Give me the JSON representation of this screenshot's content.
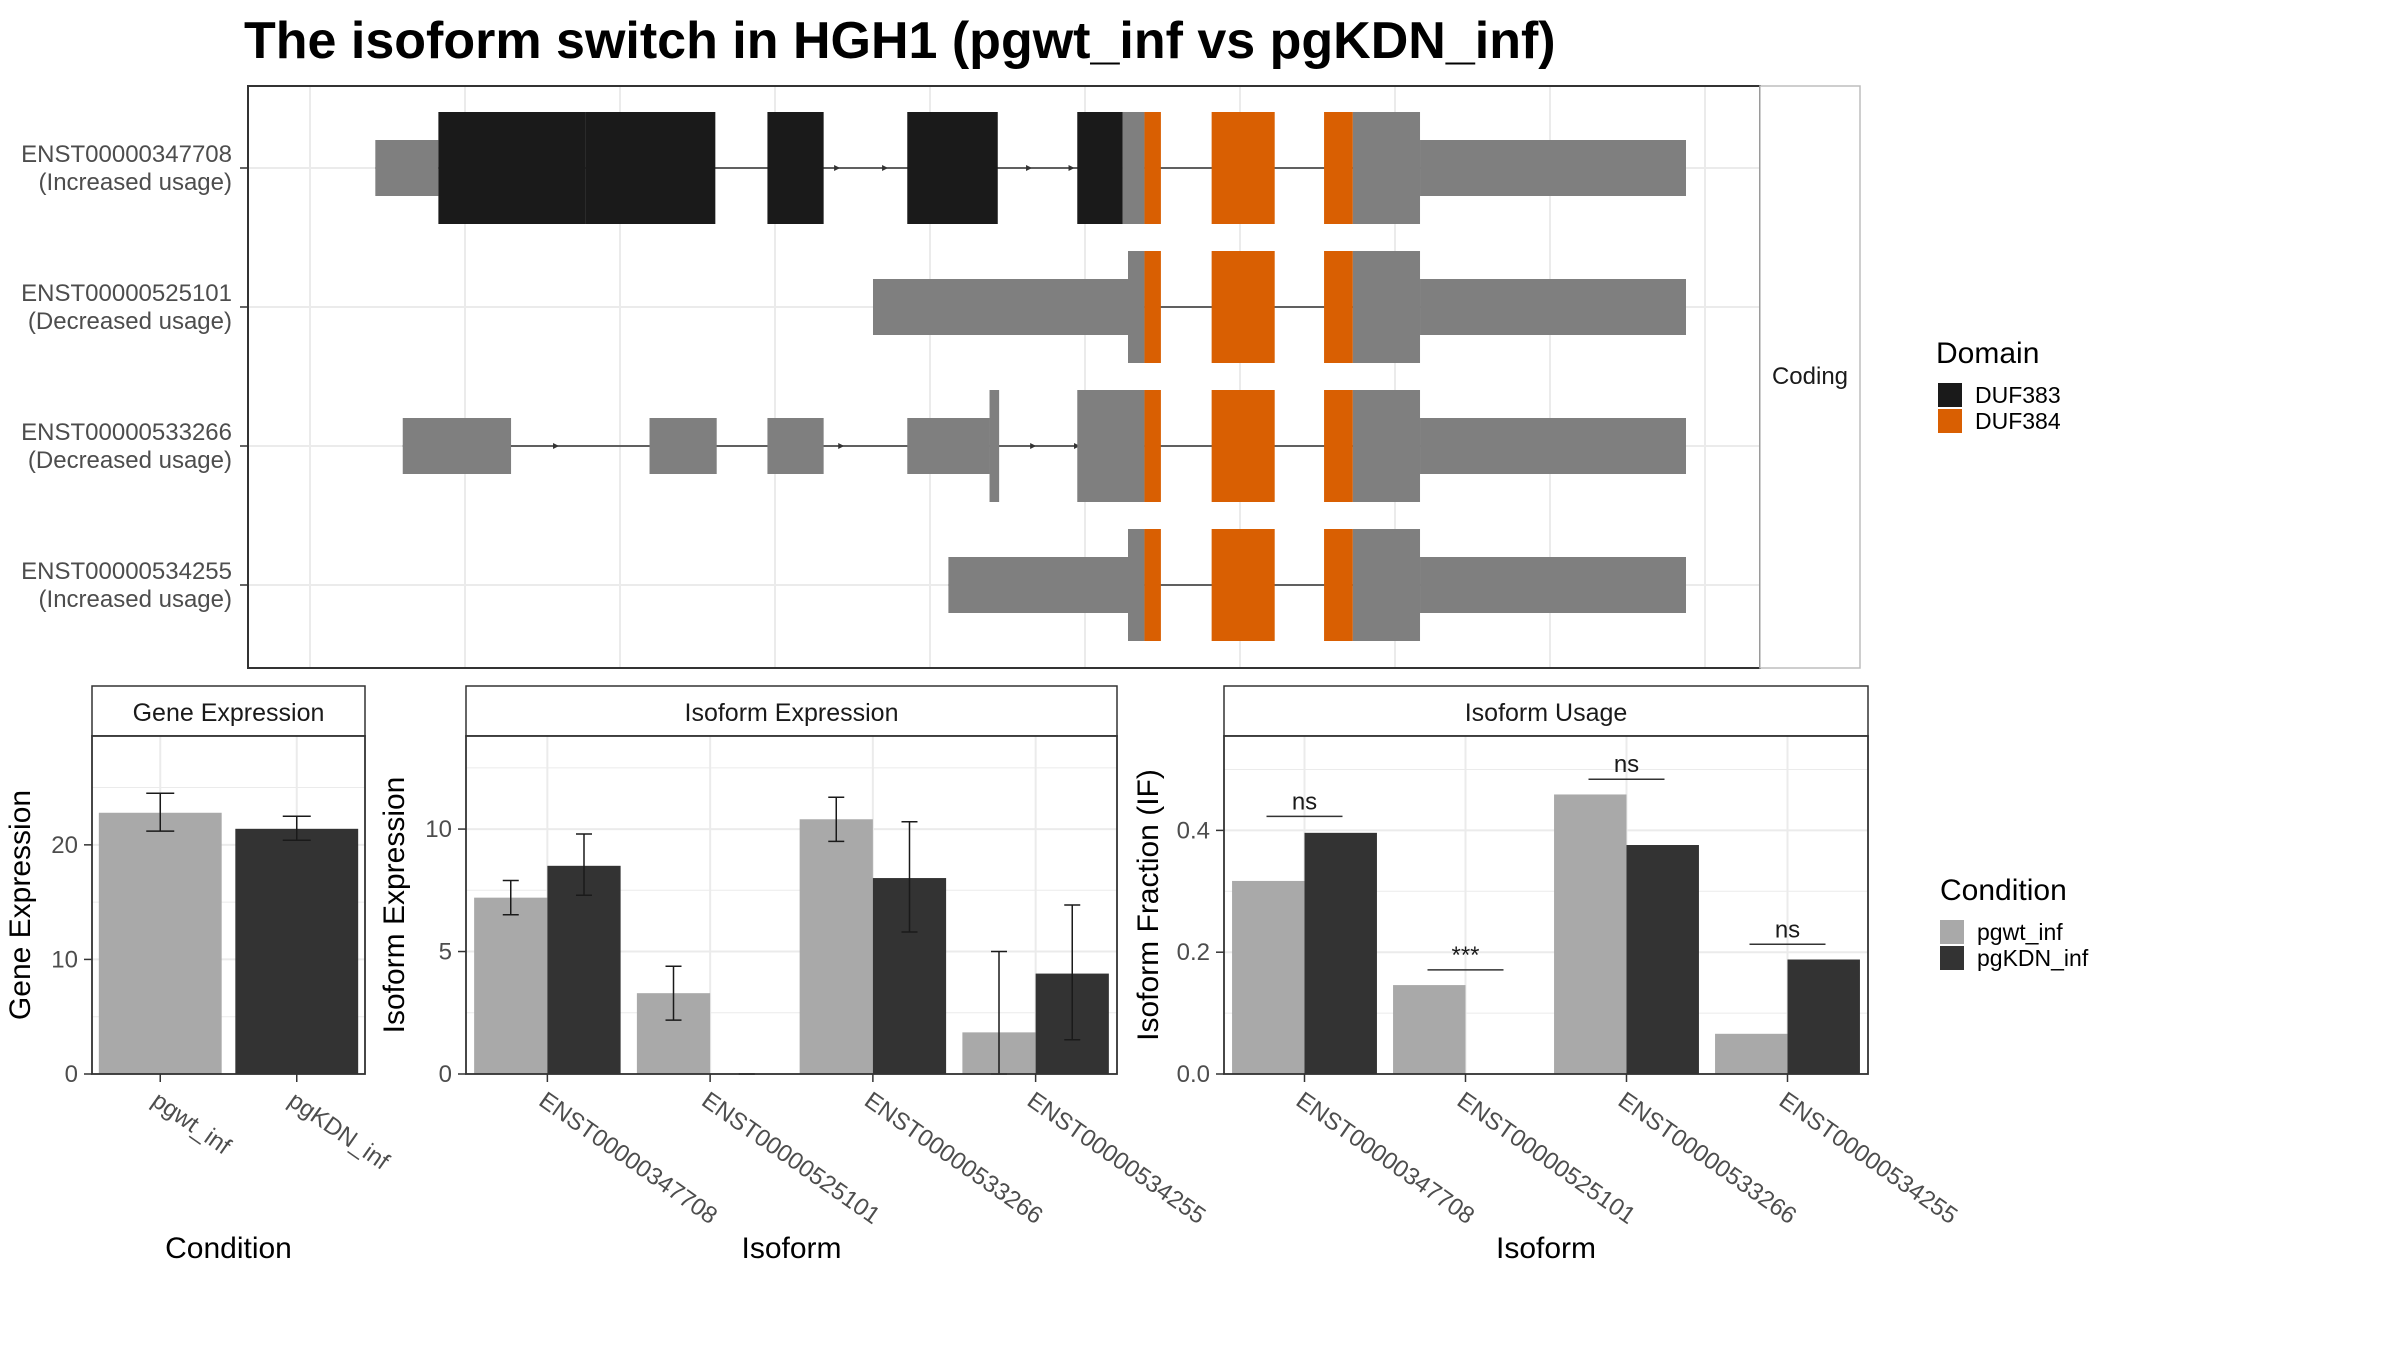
{
  "title": "The isoform switch in HGH1 (pgwt_inf vs pgKDN_inf)",
  "colors": {
    "cds": "#7f7f7f",
    "duf383": "#1a1a1a",
    "duf384": "#d95f02",
    "pgwt_inf": "#a9a9a9",
    "pgKDN_inf": "#333333",
    "grid": "#ebebeb",
    "panel_border": "#333333"
  },
  "structure": {
    "strip_label": "Coding",
    "domain_legend": {
      "title": "Domain",
      "items": [
        {
          "label": "DUF383",
          "color_key": "duf383"
        },
        {
          "label": "DUF384",
          "color_key": "duf384"
        }
      ]
    },
    "isoforms": [
      {
        "id": "ENST00000347708",
        "usage": "(Increased usage)",
        "intron_arrows": [
          0.383,
          0.418,
          0.523,
          0.554
        ],
        "segments": [
          {
            "start": 0.044,
            "end": 0.09,
            "type": "utr"
          },
          {
            "start": 0.09,
            "end": 0.197,
            "type": "duf383"
          },
          {
            "start": 0.197,
            "end": 0.292,
            "type": "duf383"
          },
          {
            "start": 0.33,
            "end": 0.371,
            "type": "duf383"
          },
          {
            "start": 0.432,
            "end": 0.498,
            "type": "duf383"
          },
          {
            "start": 0.556,
            "end": 0.589,
            "type": "duf383"
          },
          {
            "start": 0.589,
            "end": 0.605,
            "type": "cds"
          },
          {
            "start": 0.605,
            "end": 0.617,
            "type": "duf384"
          },
          {
            "start": 0.654,
            "end": 0.7,
            "type": "duf384"
          },
          {
            "start": 0.736,
            "end": 0.757,
            "type": "duf384"
          },
          {
            "start": 0.757,
            "end": 0.806,
            "type": "cds"
          },
          {
            "start": 0.806,
            "end": 1.0,
            "type": "utr"
          }
        ]
      },
      {
        "id": "ENST00000525101",
        "usage": "(Decreased usage)",
        "intron_arrows": [],
        "segments": [
          {
            "start": 0.407,
            "end": 0.593,
            "type": "utr"
          },
          {
            "start": 0.593,
            "end": 0.605,
            "type": "cds"
          },
          {
            "start": 0.605,
            "end": 0.617,
            "type": "duf384"
          },
          {
            "start": 0.654,
            "end": 0.7,
            "type": "duf384"
          },
          {
            "start": 0.736,
            "end": 0.757,
            "type": "duf384"
          },
          {
            "start": 0.757,
            "end": 0.806,
            "type": "cds"
          },
          {
            "start": 0.806,
            "end": 1.0,
            "type": "utr"
          }
        ]
      },
      {
        "id": "ENST00000533266",
        "usage": "(Decreased usage)",
        "intron_arrows": [
          0.108,
          0.144,
          0.178,
          0.354,
          0.386,
          0.526,
          0.558
        ],
        "segments": [
          {
            "start": 0.064,
            "end": 0.143,
            "type": "utr"
          },
          {
            "start": 0.244,
            "end": 0.293,
            "type": "utr"
          },
          {
            "start": 0.33,
            "end": 0.371,
            "type": "utr"
          },
          {
            "start": 0.432,
            "end": 0.492,
            "type": "utr"
          },
          {
            "start": 0.492,
            "end": 0.499,
            "type": "cds"
          },
          {
            "start": 0.556,
            "end": 0.605,
            "type": "cds"
          },
          {
            "start": 0.605,
            "end": 0.617,
            "type": "duf384"
          },
          {
            "start": 0.654,
            "end": 0.7,
            "type": "duf384"
          },
          {
            "start": 0.736,
            "end": 0.757,
            "type": "duf384"
          },
          {
            "start": 0.757,
            "end": 0.806,
            "type": "cds"
          },
          {
            "start": 0.806,
            "end": 1.0,
            "type": "utr"
          }
        ]
      },
      {
        "id": "ENST00000534255",
        "usage": "(Increased usage)",
        "intron_arrows": [],
        "segments": [
          {
            "start": 0.462,
            "end": 0.593,
            "type": "utr"
          },
          {
            "start": 0.593,
            "end": 0.605,
            "type": "cds"
          },
          {
            "start": 0.605,
            "end": 0.617,
            "type": "duf384"
          },
          {
            "start": 0.654,
            "end": 0.7,
            "type": "duf384"
          },
          {
            "start": 0.736,
            "end": 0.757,
            "type": "duf384"
          },
          {
            "start": 0.757,
            "end": 0.806,
            "type": "cds"
          },
          {
            "start": 0.806,
            "end": 1.0,
            "type": "utr"
          }
        ]
      }
    ]
  },
  "chart_data": [
    {
      "type": "bar",
      "title": "Gene Expression",
      "xlabel": "Condition",
      "ylabel": "Gene Expression",
      "categories": [
        "pgwt_inf",
        "pgKDN_inf"
      ],
      "values": [
        22.8,
        21.4
      ],
      "error_low": [
        21.2,
        20.4
      ],
      "error_high": [
        24.5,
        22.5
      ],
      "ylim": [
        0,
        29.5
      ],
      "yticks": [
        0,
        10,
        20
      ]
    },
    {
      "type": "bar",
      "title": "Isoform Expression",
      "xlabel": "Isoform",
      "ylabel": "Isoform Expression",
      "categories": [
        "ENST00000347708",
        "ENST00000525101",
        "ENST00000533266",
        "ENST00000534255"
      ],
      "series": [
        {
          "name": "pgwt_inf",
          "values": [
            7.2,
            3.3,
            10.4,
            1.7
          ],
          "error_low": [
            6.5,
            2.2,
            9.5,
            0.0
          ],
          "error_high": [
            7.9,
            4.4,
            11.3,
            5.0
          ]
        },
        {
          "name": "pgKDN_inf",
          "values": [
            8.5,
            0.0,
            8.0,
            4.1
          ],
          "error_low": [
            7.3,
            0.0,
            5.8,
            1.4
          ],
          "error_high": [
            9.8,
            0.0,
            10.3,
            6.9
          ]
        }
      ],
      "ylim": [
        0,
        13.8
      ],
      "yticks": [
        0,
        5,
        10
      ]
    },
    {
      "type": "bar",
      "title": "Isoform Usage",
      "xlabel": "Isoform",
      "ylabel": "Isoform Fraction (IF)",
      "categories": [
        "ENST00000347708",
        "ENST00000525101",
        "ENST00000533266",
        "ENST00000534255"
      ],
      "series": [
        {
          "name": "pgwt_inf",
          "values": [
            0.317,
            0.146,
            0.459,
            0.066
          ]
        },
        {
          "name": "pgKDN_inf",
          "values": [
            0.396,
            0.0,
            0.376,
            0.188
          ]
        }
      ],
      "significance": [
        "ns",
        "***",
        "ns",
        "ns"
      ],
      "significance_y": [
        0.423,
        0.171,
        0.484,
        0.213
      ],
      "ylim": [
        0,
        0.555
      ],
      "yticks": [
        0.0,
        0.2,
        0.4
      ],
      "ytick_labels": [
        "0.0",
        "0.2",
        "0.4"
      ]
    }
  ],
  "condition_legend": {
    "title": "Condition",
    "items": [
      {
        "label": "pgwt_inf",
        "color_key": "pgwt_inf"
      },
      {
        "label": "pgKDN_inf",
        "color_key": "pgKDN_inf"
      }
    ]
  }
}
